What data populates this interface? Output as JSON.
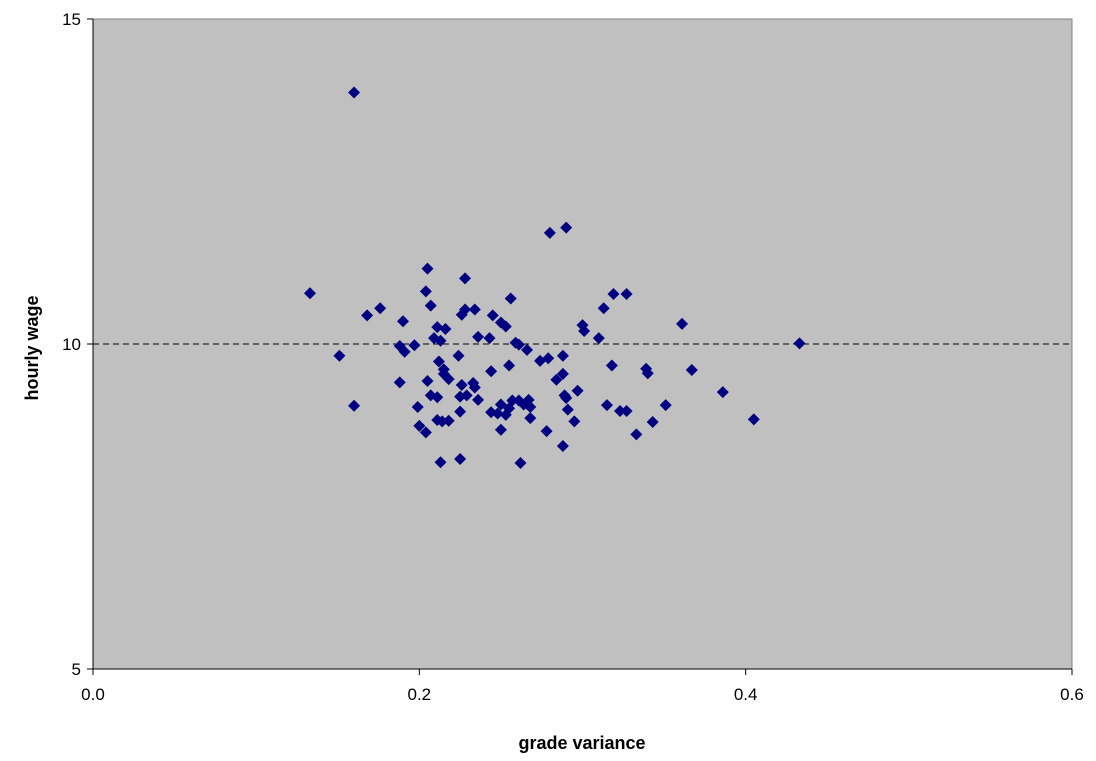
{
  "chart_data": {
    "type": "scatter",
    "title": "",
    "xlabel": "grade variance",
    "ylabel": "hourly wage",
    "xlim": [
      0.0,
      0.6
    ],
    "ylim": [
      5,
      15
    ],
    "x_ticks": [
      "0.0",
      "0.2",
      "0.4",
      "0.6"
    ],
    "y_ticks": [
      "5",
      "10",
      "15"
    ],
    "x_tick_values": [
      0.0,
      0.2,
      0.4,
      0.6
    ],
    "y_tick_values": [
      5,
      10,
      15
    ],
    "reference_line": {
      "y": 10,
      "style": "dashed"
    },
    "grid": false,
    "legend": "none",
    "colors": {
      "plot_background": "#c0c0c0",
      "marker": "#000080"
    },
    "marker": "diamond",
    "points": [
      [
        0.16,
        13.87
      ],
      [
        0.28,
        11.71
      ],
      [
        0.29,
        11.79
      ],
      [
        0.133,
        10.78
      ],
      [
        0.205,
        11.16
      ],
      [
        0.228,
        11.01
      ],
      [
        0.204,
        10.81
      ],
      [
        0.207,
        10.59
      ],
      [
        0.168,
        10.44
      ],
      [
        0.176,
        10.55
      ],
      [
        0.19,
        10.35
      ],
      [
        0.211,
        10.26
      ],
      [
        0.216,
        10.23
      ],
      [
        0.226,
        10.45
      ],
      [
        0.228,
        10.53
      ],
      [
        0.234,
        10.53
      ],
      [
        0.256,
        10.7
      ],
      [
        0.245,
        10.44
      ],
      [
        0.25,
        10.33
      ],
      [
        0.253,
        10.27
      ],
      [
        0.236,
        10.11
      ],
      [
        0.243,
        10.09
      ],
      [
        0.259,
        10.02
      ],
      [
        0.261,
        9.99
      ],
      [
        0.266,
        9.91
      ],
      [
        0.151,
        9.82
      ],
      [
        0.188,
        9.97
      ],
      [
        0.191,
        9.88
      ],
      [
        0.197,
        9.98
      ],
      [
        0.209,
        10.09
      ],
      [
        0.213,
        10.05
      ],
      [
        0.212,
        9.73
      ],
      [
        0.215,
        9.61
      ],
      [
        0.215,
        9.54
      ],
      [
        0.224,
        9.82
      ],
      [
        0.255,
        9.67
      ],
      [
        0.274,
        9.74
      ],
      [
        0.279,
        9.78
      ],
      [
        0.288,
        9.82
      ],
      [
        0.3,
        10.29
      ],
      [
        0.301,
        10.2
      ],
      [
        0.31,
        10.09
      ],
      [
        0.313,
        10.55
      ],
      [
        0.319,
        10.77
      ],
      [
        0.327,
        10.77
      ],
      [
        0.361,
        10.31
      ],
      [
        0.433,
        10.01
      ],
      [
        0.318,
        9.67
      ],
      [
        0.339,
        9.62
      ],
      [
        0.34,
        9.55
      ],
      [
        0.367,
        9.6
      ],
      [
        0.188,
        9.41
      ],
      [
        0.205,
        9.43
      ],
      [
        0.207,
        9.21
      ],
      [
        0.211,
        9.18
      ],
      [
        0.218,
        9.46
      ],
      [
        0.226,
        9.37
      ],
      [
        0.233,
        9.4
      ],
      [
        0.234,
        9.33
      ],
      [
        0.236,
        9.14
      ],
      [
        0.244,
        9.58
      ],
      [
        0.225,
        9.19
      ],
      [
        0.229,
        9.21
      ],
      [
        0.225,
        8.96
      ],
      [
        0.244,
        8.95
      ],
      [
        0.248,
        8.93
      ],
      [
        0.25,
        9.07
      ],
      [
        0.253,
        8.91
      ],
      [
        0.255,
        9.01
      ],
      [
        0.257,
        9.13
      ],
      [
        0.261,
        9.13
      ],
      [
        0.264,
        9.07
      ],
      [
        0.267,
        9.14
      ],
      [
        0.268,
        9.03
      ],
      [
        0.284,
        9.45
      ],
      [
        0.288,
        9.54
      ],
      [
        0.29,
        9.17
      ],
      [
        0.289,
        9.21
      ],
      [
        0.291,
        8.99
      ],
      [
        0.297,
        9.28
      ],
      [
        0.315,
        9.06
      ],
      [
        0.323,
        8.97
      ],
      [
        0.327,
        8.97
      ],
      [
        0.351,
        9.06
      ],
      [
        0.386,
        9.26
      ],
      [
        0.16,
        9.05
      ],
      [
        0.199,
        9.03
      ],
      [
        0.2,
        8.74
      ],
      [
        0.204,
        8.64
      ],
      [
        0.211,
        8.83
      ],
      [
        0.214,
        8.81
      ],
      [
        0.218,
        8.82
      ],
      [
        0.25,
        8.68
      ],
      [
        0.268,
        8.86
      ],
      [
        0.278,
        8.66
      ],
      [
        0.295,
        8.81
      ],
      [
        0.333,
        8.61
      ],
      [
        0.343,
        8.8
      ],
      [
        0.405,
        8.84
      ],
      [
        0.213,
        8.18
      ],
      [
        0.225,
        8.23
      ],
      [
        0.262,
        8.17
      ],
      [
        0.288,
        8.43
      ]
    ]
  }
}
